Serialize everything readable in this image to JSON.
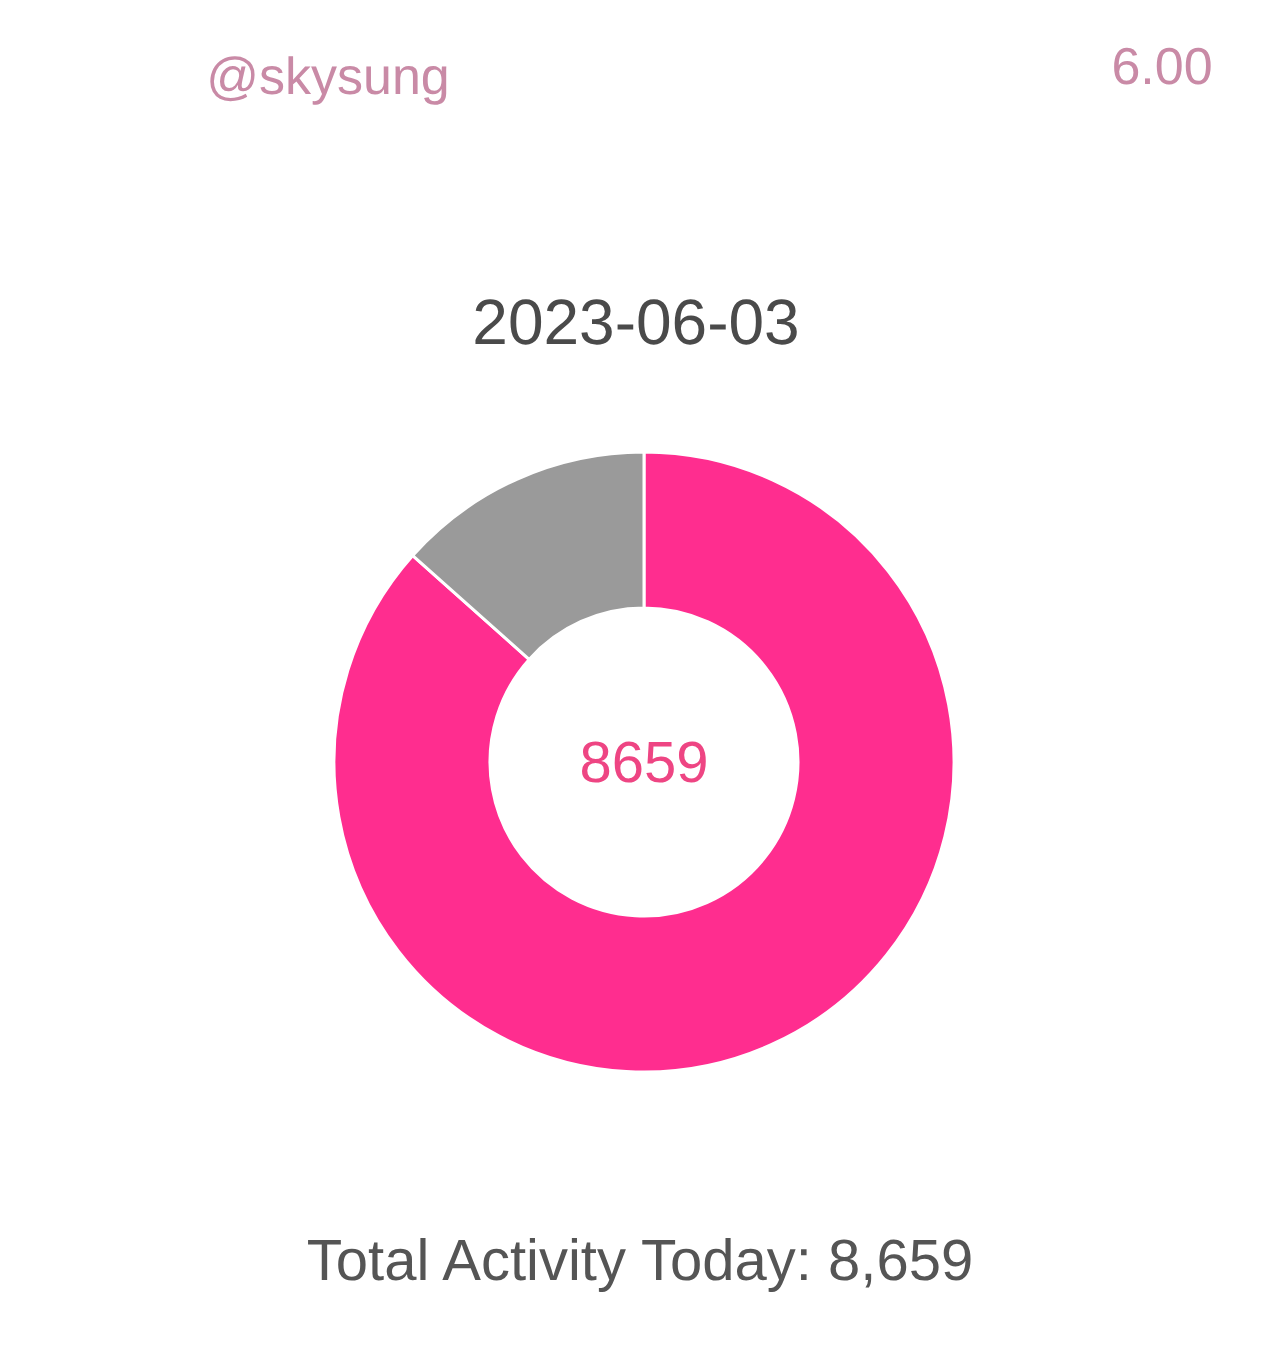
{
  "chart_data": {
    "type": "donut",
    "title": "2023-06-03",
    "categories": [
      null,
      null
    ],
    "values": [
      86.6,
      13.4
    ],
    "colors": [
      "#ff2d8f",
      "#9a9a9a"
    ],
    "annotations": [
      "@skysung",
      "6.00",
      "8659",
      "Total Activity Today: 8,659"
    ]
  }
}
